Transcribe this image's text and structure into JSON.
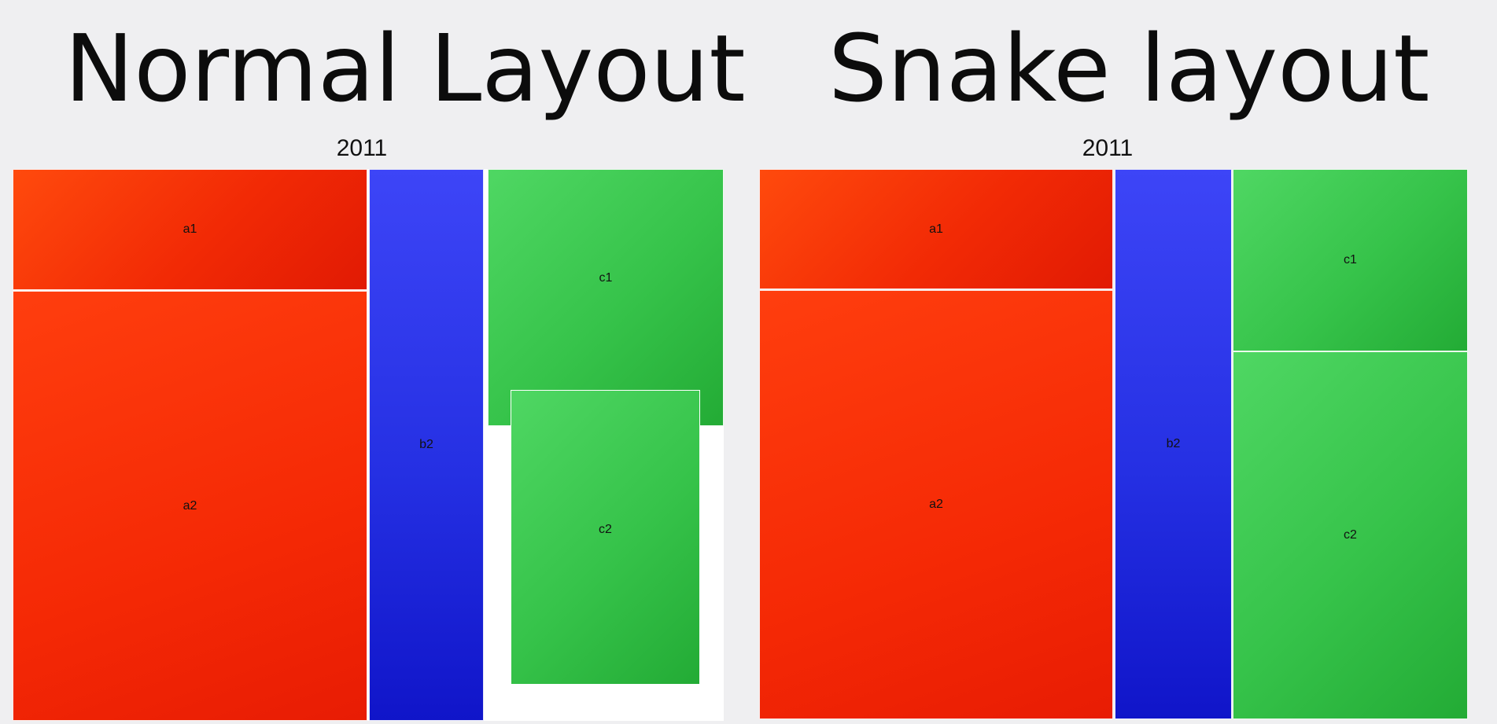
{
  "left": {
    "heading": "Normal Layout",
    "year": "2011",
    "cells": {
      "a1": "a1",
      "a2": "a2",
      "b2": "b2",
      "c1": "c1",
      "c2": "c2"
    }
  },
  "right": {
    "heading": "Snake layout",
    "year": "2011",
    "cells": {
      "a1": "a1",
      "a2": "a2",
      "b2": "b2",
      "c1": "c1",
      "c2": "c2"
    }
  },
  "colors": {
    "red": "#f22a05",
    "blue": "#2530e3",
    "green": "#36c34a"
  }
}
